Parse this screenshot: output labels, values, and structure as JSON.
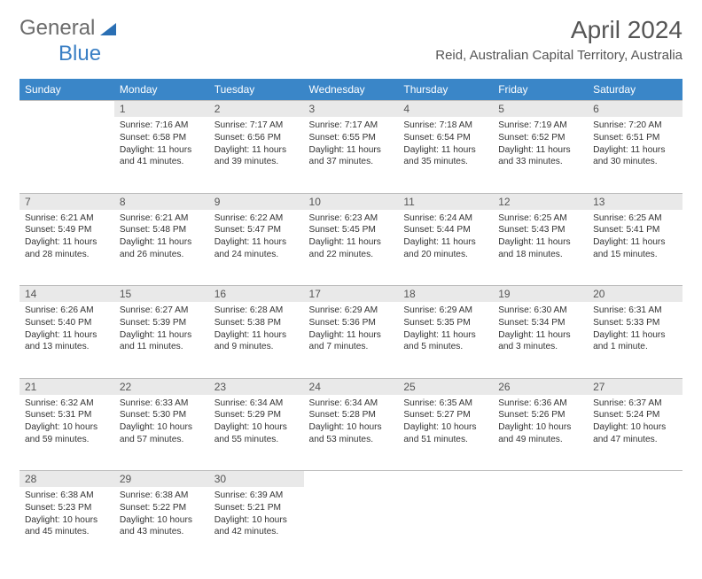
{
  "brand": {
    "part1": "General",
    "part2": "Blue"
  },
  "title": "April 2024",
  "location": "Reid, Australian Capital Territory, Australia",
  "colors": {
    "header_bg": "#3a86c8",
    "header_text": "#ffffff",
    "daynum_bg": "#e9e9e9",
    "border": "#bdbdbd",
    "text": "#333333",
    "brand_gray": "#6b6b6b",
    "brand_blue": "#3a7fc4"
  },
  "weekdays": [
    "Sunday",
    "Monday",
    "Tuesday",
    "Wednesday",
    "Thursday",
    "Friday",
    "Saturday"
  ],
  "calendar": {
    "first_weekday_index": 1,
    "days_in_month": 30,
    "days": {
      "1": {
        "sunrise": "7:16 AM",
        "sunset": "6:58 PM",
        "daylight": "11 hours and 41 minutes."
      },
      "2": {
        "sunrise": "7:17 AM",
        "sunset": "6:56 PM",
        "daylight": "11 hours and 39 minutes."
      },
      "3": {
        "sunrise": "7:17 AM",
        "sunset": "6:55 PM",
        "daylight": "11 hours and 37 minutes."
      },
      "4": {
        "sunrise": "7:18 AM",
        "sunset": "6:54 PM",
        "daylight": "11 hours and 35 minutes."
      },
      "5": {
        "sunrise": "7:19 AM",
        "sunset": "6:52 PM",
        "daylight": "11 hours and 33 minutes."
      },
      "6": {
        "sunrise": "7:20 AM",
        "sunset": "6:51 PM",
        "daylight": "11 hours and 30 minutes."
      },
      "7": {
        "sunrise": "6:21 AM",
        "sunset": "5:49 PM",
        "daylight": "11 hours and 28 minutes."
      },
      "8": {
        "sunrise": "6:21 AM",
        "sunset": "5:48 PM",
        "daylight": "11 hours and 26 minutes."
      },
      "9": {
        "sunrise": "6:22 AM",
        "sunset": "5:47 PM",
        "daylight": "11 hours and 24 minutes."
      },
      "10": {
        "sunrise": "6:23 AM",
        "sunset": "5:45 PM",
        "daylight": "11 hours and 22 minutes."
      },
      "11": {
        "sunrise": "6:24 AM",
        "sunset": "5:44 PM",
        "daylight": "11 hours and 20 minutes."
      },
      "12": {
        "sunrise": "6:25 AM",
        "sunset": "5:43 PM",
        "daylight": "11 hours and 18 minutes."
      },
      "13": {
        "sunrise": "6:25 AM",
        "sunset": "5:41 PM",
        "daylight": "11 hours and 15 minutes."
      },
      "14": {
        "sunrise": "6:26 AM",
        "sunset": "5:40 PM",
        "daylight": "11 hours and 13 minutes."
      },
      "15": {
        "sunrise": "6:27 AM",
        "sunset": "5:39 PM",
        "daylight": "11 hours and 11 minutes."
      },
      "16": {
        "sunrise": "6:28 AM",
        "sunset": "5:38 PM",
        "daylight": "11 hours and 9 minutes."
      },
      "17": {
        "sunrise": "6:29 AM",
        "sunset": "5:36 PM",
        "daylight": "11 hours and 7 minutes."
      },
      "18": {
        "sunrise": "6:29 AM",
        "sunset": "5:35 PM",
        "daylight": "11 hours and 5 minutes."
      },
      "19": {
        "sunrise": "6:30 AM",
        "sunset": "5:34 PM",
        "daylight": "11 hours and 3 minutes."
      },
      "20": {
        "sunrise": "6:31 AM",
        "sunset": "5:33 PM",
        "daylight": "11 hours and 1 minute."
      },
      "21": {
        "sunrise": "6:32 AM",
        "sunset": "5:31 PM",
        "daylight": "10 hours and 59 minutes."
      },
      "22": {
        "sunrise": "6:33 AM",
        "sunset": "5:30 PM",
        "daylight": "10 hours and 57 minutes."
      },
      "23": {
        "sunrise": "6:34 AM",
        "sunset": "5:29 PM",
        "daylight": "10 hours and 55 minutes."
      },
      "24": {
        "sunrise": "6:34 AM",
        "sunset": "5:28 PM",
        "daylight": "10 hours and 53 minutes."
      },
      "25": {
        "sunrise": "6:35 AM",
        "sunset": "5:27 PM",
        "daylight": "10 hours and 51 minutes."
      },
      "26": {
        "sunrise": "6:36 AM",
        "sunset": "5:26 PM",
        "daylight": "10 hours and 49 minutes."
      },
      "27": {
        "sunrise": "6:37 AM",
        "sunset": "5:24 PM",
        "daylight": "10 hours and 47 minutes."
      },
      "28": {
        "sunrise": "6:38 AM",
        "sunset": "5:23 PM",
        "daylight": "10 hours and 45 minutes."
      },
      "29": {
        "sunrise": "6:38 AM",
        "sunset": "5:22 PM",
        "daylight": "10 hours and 43 minutes."
      },
      "30": {
        "sunrise": "6:39 AM",
        "sunset": "5:21 PM",
        "daylight": "10 hours and 42 minutes."
      }
    },
    "labels": {
      "sunrise": "Sunrise:",
      "sunset": "Sunset:",
      "daylight": "Daylight:"
    }
  }
}
